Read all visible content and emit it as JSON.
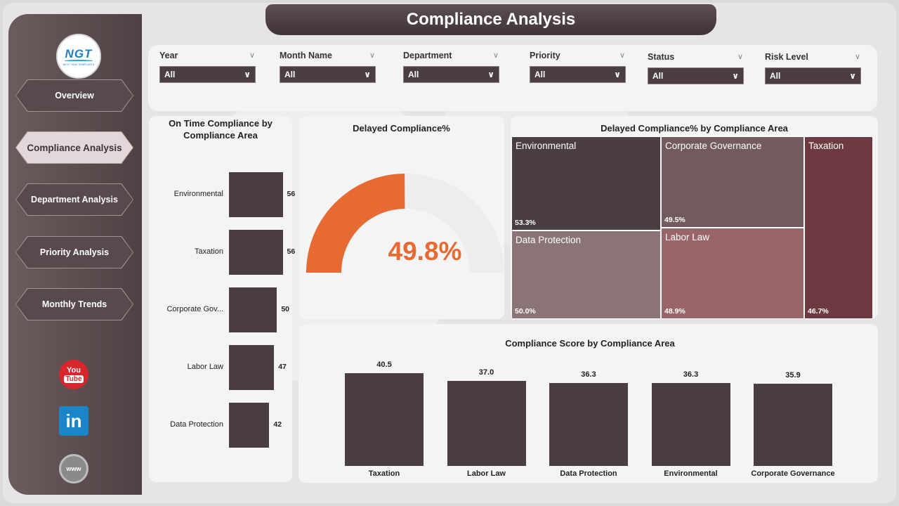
{
  "app": {
    "title": "Compliance Analysis",
    "logo": {
      "text": "NGT",
      "subtext": "NEXT GEN TEMPLATES"
    }
  },
  "colors": {
    "accent": "#E86A33",
    "bar": "#4A3E40",
    "sidebar": "#584A4C",
    "treemap": [
      "#4A3E40",
      "#735A5E",
      "#8A7476",
      "#996568",
      "#6E3A42"
    ]
  },
  "sidebar": {
    "items": [
      {
        "label": "Overview",
        "active": false
      },
      {
        "label": "Compliance Analysis",
        "active": true
      },
      {
        "label": "Department Analysis",
        "active": false
      },
      {
        "label": "Priority Analysis",
        "active": false
      },
      {
        "label": "Monthly Trends",
        "active": false
      }
    ],
    "social": [
      {
        "icon": "youtube-icon",
        "top": "You",
        "bottom": "Tube"
      },
      {
        "icon": "linkedin-icon",
        "text": "in"
      },
      {
        "icon": "website-icon",
        "text": "www"
      }
    ]
  },
  "filters": [
    {
      "label": "Year",
      "value": "All"
    },
    {
      "label": "Month Name",
      "value": "All"
    },
    {
      "label": "Department",
      "value": "All"
    },
    {
      "label": "Priority",
      "value": "All"
    },
    {
      "label": "Status",
      "value": "All"
    },
    {
      "label": "Risk Level",
      "value": "All"
    }
  ],
  "cards": {
    "on_time": {
      "title_line1": "On Time Compliance by",
      "title_line2": "Compliance Area"
    },
    "delayed_pct": {
      "title": "Delayed Compliance%",
      "value": "49.8%"
    },
    "treemap": {
      "title": "Delayed Compliance% by Compliance Area"
    },
    "score": {
      "title": "Compliance Score by Compliance Area"
    }
  },
  "chart_data": [
    {
      "type": "bar",
      "orientation": "horizontal",
      "title": "On Time Compliance by Compliance Area",
      "categories": [
        "Environmental",
        "Taxation",
        "Corporate Gov...",
        "Labor Law",
        "Data Protection"
      ],
      "values": [
        56,
        56,
        50,
        47,
        42
      ],
      "value_labels": [
        "56",
        "56",
        "50",
        "47",
        "42"
      ],
      "xlim": [
        0,
        60
      ]
    },
    {
      "type": "pie",
      "subtype": "gauge",
      "title": "Delayed Compliance%",
      "values": [
        49.8
      ],
      "max": 100,
      "label": "49.8%"
    },
    {
      "type": "heatmap",
      "subtype": "treemap",
      "title": "Delayed Compliance% by Compliance Area",
      "categories": [
        "Environmental",
        "Corporate Governance",
        "Taxation",
        "Data Protection",
        "Labor Law"
      ],
      "values": [
        53.3,
        49.5,
        46.7,
        50.0,
        48.9
      ],
      "value_labels": [
        "53.3%",
        "49.5%",
        "46.7%",
        "50.0%",
        "48.9%"
      ]
    },
    {
      "type": "bar",
      "orientation": "vertical",
      "title": "Compliance Score by Compliance Area",
      "categories": [
        "Taxation",
        "Labor Law",
        "Data Protection",
        "Environmental",
        "Corporate Governance"
      ],
      "values": [
        40.5,
        37.0,
        36.3,
        36.3,
        35.9
      ],
      "value_labels": [
        "40.5",
        "37.0",
        "36.3",
        "36.3",
        "35.9"
      ],
      "ylim": [
        0,
        42
      ]
    }
  ]
}
